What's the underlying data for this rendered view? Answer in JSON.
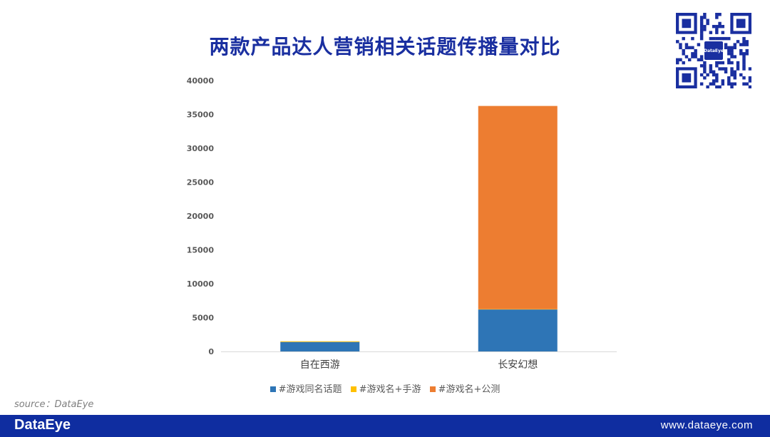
{
  "title": "两款产品达人营销相关话题传播量对比",
  "source": "source：DataEye",
  "footer": {
    "brand": "DataEye",
    "site": "www.dataeye.com"
  },
  "qr": {
    "logo_text": "DataEye"
  },
  "chart_data": {
    "type": "bar",
    "stacked": true,
    "categories": [
      "自在西游",
      "长安幻想"
    ],
    "series": [
      {
        "name": "#游戏同名话题",
        "values": [
          1400,
          6200
        ],
        "color": "#2e75b6"
      },
      {
        "name": "#游戏名+手游",
        "values": [
          100,
          50
        ],
        "color": "#ffc000"
      },
      {
        "name": "#游戏名+公测",
        "values": [
          0,
          30000
        ],
        "color": "#ed7d31"
      }
    ],
    "ylim": [
      0,
      40000
    ],
    "yticks": [
      0,
      5000,
      10000,
      15000,
      20000,
      25000,
      30000,
      35000,
      40000
    ],
    "grid": false,
    "legend": "bottom"
  }
}
